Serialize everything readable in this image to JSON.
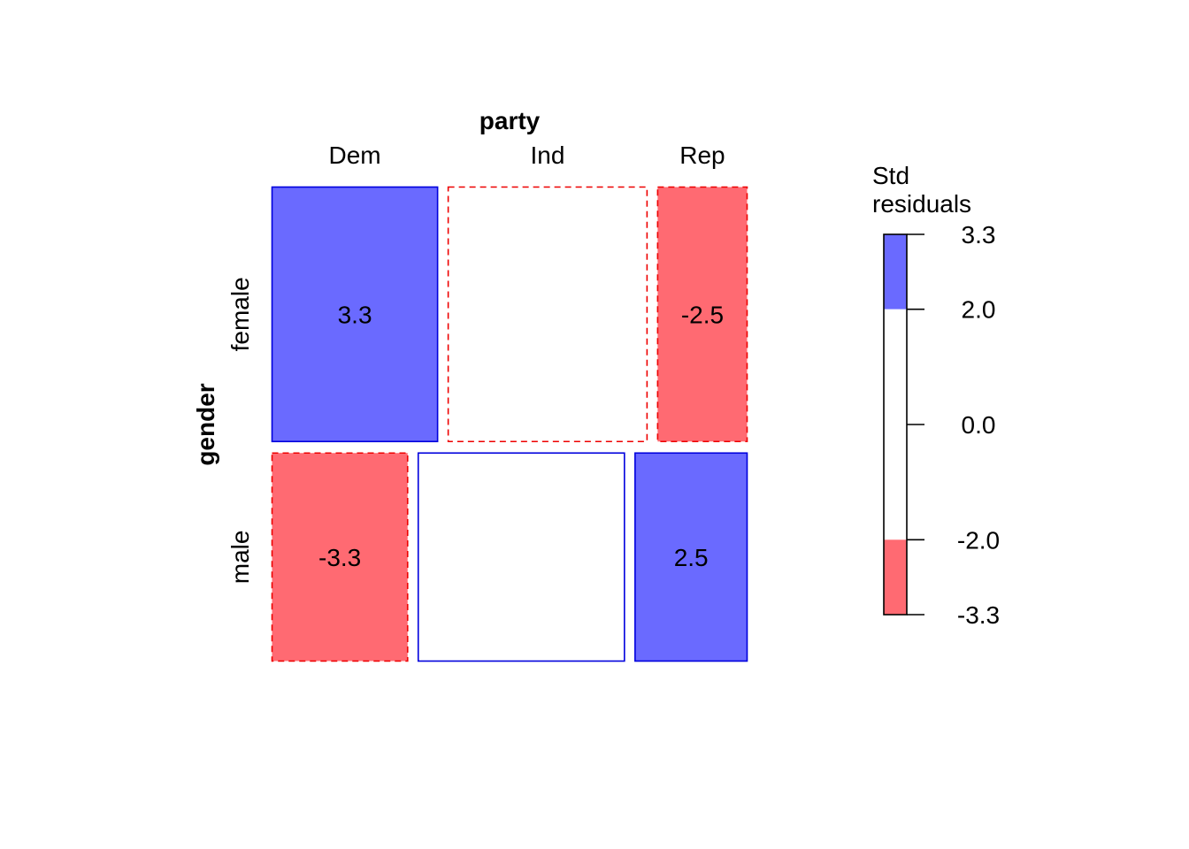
{
  "chart_data": {
    "type": "mosaic",
    "title": "",
    "col_variable": "party",
    "row_variable": "gender",
    "col_categories": [
      "Dem",
      "Ind",
      "Rep"
    ],
    "row_categories": [
      "female",
      "male"
    ],
    "row_proportions": [
      0.55,
      0.45
    ],
    "cells": [
      {
        "row": "female",
        "col": "Dem",
        "proportion": 0.35,
        "residual": 3.3,
        "label": "3.3",
        "sign": "positive"
      },
      {
        "row": "female",
        "col": "Ind",
        "proportion": 0.42,
        "residual": -0.5,
        "label": "",
        "sign": "negative"
      },
      {
        "row": "female",
        "col": "Rep",
        "proportion": 0.19,
        "residual": -2.5,
        "label": "-2.5",
        "sign": "negative"
      },
      {
        "row": "male",
        "col": "Dem",
        "proportion": 0.29,
        "residual": -3.3,
        "label": "-3.3",
        "sign": "negative"
      },
      {
        "row": "male",
        "col": "Ind",
        "proportion": 0.44,
        "residual": 0.5,
        "label": "",
        "sign": "positive"
      },
      {
        "row": "male",
        "col": "Rep",
        "proportion": 0.24,
        "residual": 2.5,
        "label": "2.5",
        "sign": "positive"
      }
    ],
    "legend": {
      "title_lines": [
        "Std",
        "residuals"
      ],
      "range": [
        -3.3,
        3.3
      ],
      "ticks": [
        "3.3",
        "2.0",
        "0.0",
        "-2.0",
        "-3.3"
      ],
      "tick_values": [
        3.3,
        2.0,
        0.0,
        -2.0,
        -3.3
      ],
      "threshold": 2.0
    },
    "colors": {
      "positive_fill": "#6a6aff",
      "negative_fill": "#ff6a72",
      "neutral_fill": "#ffffff",
      "positive_border": "#0000dd",
      "negative_border": "#ee0000"
    }
  }
}
